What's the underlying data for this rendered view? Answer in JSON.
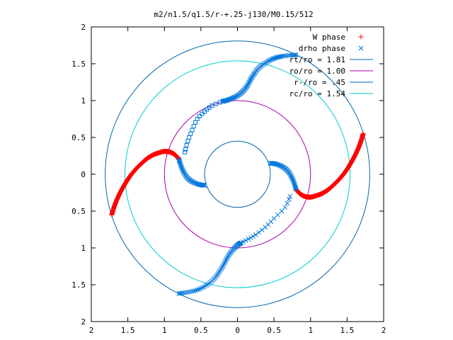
{
  "chart_data": {
    "type": "scatter",
    "title": "m2/n1.5/q1.5/r-+.25-j130/M0.15/512",
    "xlabel": "",
    "ylabel": "",
    "xlim": [
      -2,
      2
    ],
    "ylim": [
      -2,
      2
    ],
    "x_tick_values": [
      -2,
      -1.5,
      -1,
      -0.5,
      0,
      0.5,
      1,
      1.5,
      2
    ],
    "y_tick_values": [
      -2,
      -1.5,
      -1,
      -0.5,
      0,
      0.5,
      1,
      1.5,
      2
    ],
    "x_tick_labels": [
      "2",
      "1.5",
      "1",
      "0.5",
      "0",
      "0.5",
      "1",
      "1.5",
      "2"
    ],
    "y_tick_labels": [
      "2",
      "1.5",
      "1",
      "0.5",
      "0",
      "0.5",
      "1",
      "1.5",
      "2"
    ],
    "grid": false,
    "legend_position": "top-right",
    "series": [
      {
        "name": "W phase",
        "marker": "plus",
        "color": "#ff0000",
        "points": [
          [
            -1.72,
            -0.55
          ],
          [
            -1.68,
            -0.42
          ],
          [
            -1.62,
            -0.28
          ],
          [
            -1.55,
            -0.15
          ],
          [
            -1.48,
            -0.04
          ],
          [
            -1.4,
            0.06
          ],
          [
            -1.32,
            0.14
          ],
          [
            -1.24,
            0.21
          ],
          [
            -1.16,
            0.26
          ],
          [
            -1.08,
            0.29
          ],
          [
            -1.0,
            0.31
          ],
          [
            -0.92,
            0.3
          ],
          [
            -0.85,
            0.26
          ],
          [
            -0.8,
            0.2
          ],
          [
            1.72,
            0.55
          ],
          [
            1.68,
            0.42
          ],
          [
            1.62,
            0.28
          ],
          [
            1.55,
            0.15
          ],
          [
            1.48,
            0.04
          ],
          [
            1.4,
            -0.06
          ],
          [
            1.32,
            -0.14
          ],
          [
            1.24,
            -0.21
          ],
          [
            1.16,
            -0.26
          ],
          [
            1.08,
            -0.29
          ],
          [
            1.0,
            -0.31
          ],
          [
            0.92,
            -0.3
          ],
          [
            0.85,
            -0.26
          ],
          [
            0.8,
            -0.2
          ]
        ]
      },
      {
        "name": "drho phase",
        "marker": "cross-square",
        "color": "#0077dd",
        "points": [
          [
            -0.8,
            0.2
          ],
          [
            -0.76,
            0.08
          ],
          [
            -0.7,
            -0.03
          ],
          [
            -0.62,
            -0.1
          ],
          [
            -0.52,
            -0.14
          ],
          [
            -0.45,
            -0.15
          ],
          [
            -0.72,
            0.3
          ],
          [
            -0.68,
            0.45
          ],
          [
            -0.62,
            0.6
          ],
          [
            -0.55,
            0.75
          ],
          [
            -0.45,
            0.85
          ],
          [
            -0.35,
            0.93
          ],
          [
            -0.2,
            0.99
          ],
          [
            -0.1,
            1.02
          ],
          [
            0.02,
            1.08
          ],
          [
            0.12,
            1.18
          ],
          [
            0.2,
            1.32
          ],
          [
            0.3,
            1.45
          ],
          [
            0.45,
            1.55
          ],
          [
            0.6,
            1.6
          ],
          [
            0.8,
            1.62
          ],
          [
            0.8,
            -0.2
          ],
          [
            0.76,
            -0.08
          ],
          [
            0.7,
            0.03
          ],
          [
            0.62,
            0.1
          ],
          [
            0.52,
            0.14
          ],
          [
            0.45,
            0.15
          ],
          [
            0.72,
            -0.3
          ],
          [
            0.65,
            -0.45
          ],
          [
            0.5,
            -0.6
          ],
          [
            0.38,
            -0.72
          ],
          [
            0.25,
            -0.82
          ],
          [
            0.15,
            -0.88
          ],
          [
            0.05,
            -0.93
          ],
          [
            -0.02,
            -0.98
          ],
          [
            -0.12,
            -1.1
          ],
          [
            -0.22,
            -1.28
          ],
          [
            -0.35,
            -1.45
          ],
          [
            -0.55,
            -1.57
          ],
          [
            -0.8,
            -1.62
          ]
        ]
      },
      {
        "name": "rt/ro = 1.81",
        "type": "circle",
        "radius": 1.81,
        "color": "#0066aa"
      },
      {
        "name": "ro/ro = 1.00",
        "type": "circle",
        "radius": 1.0,
        "color": "#aa00aa"
      },
      {
        "name": "r-/ro = .45",
        "type": "circle",
        "radius": 0.45,
        "color": "#0066aa"
      },
      {
        "name": "rc/ro = 1.54",
        "type": "circle",
        "radius": 1.54,
        "color": "#00cccc"
      }
    ]
  }
}
